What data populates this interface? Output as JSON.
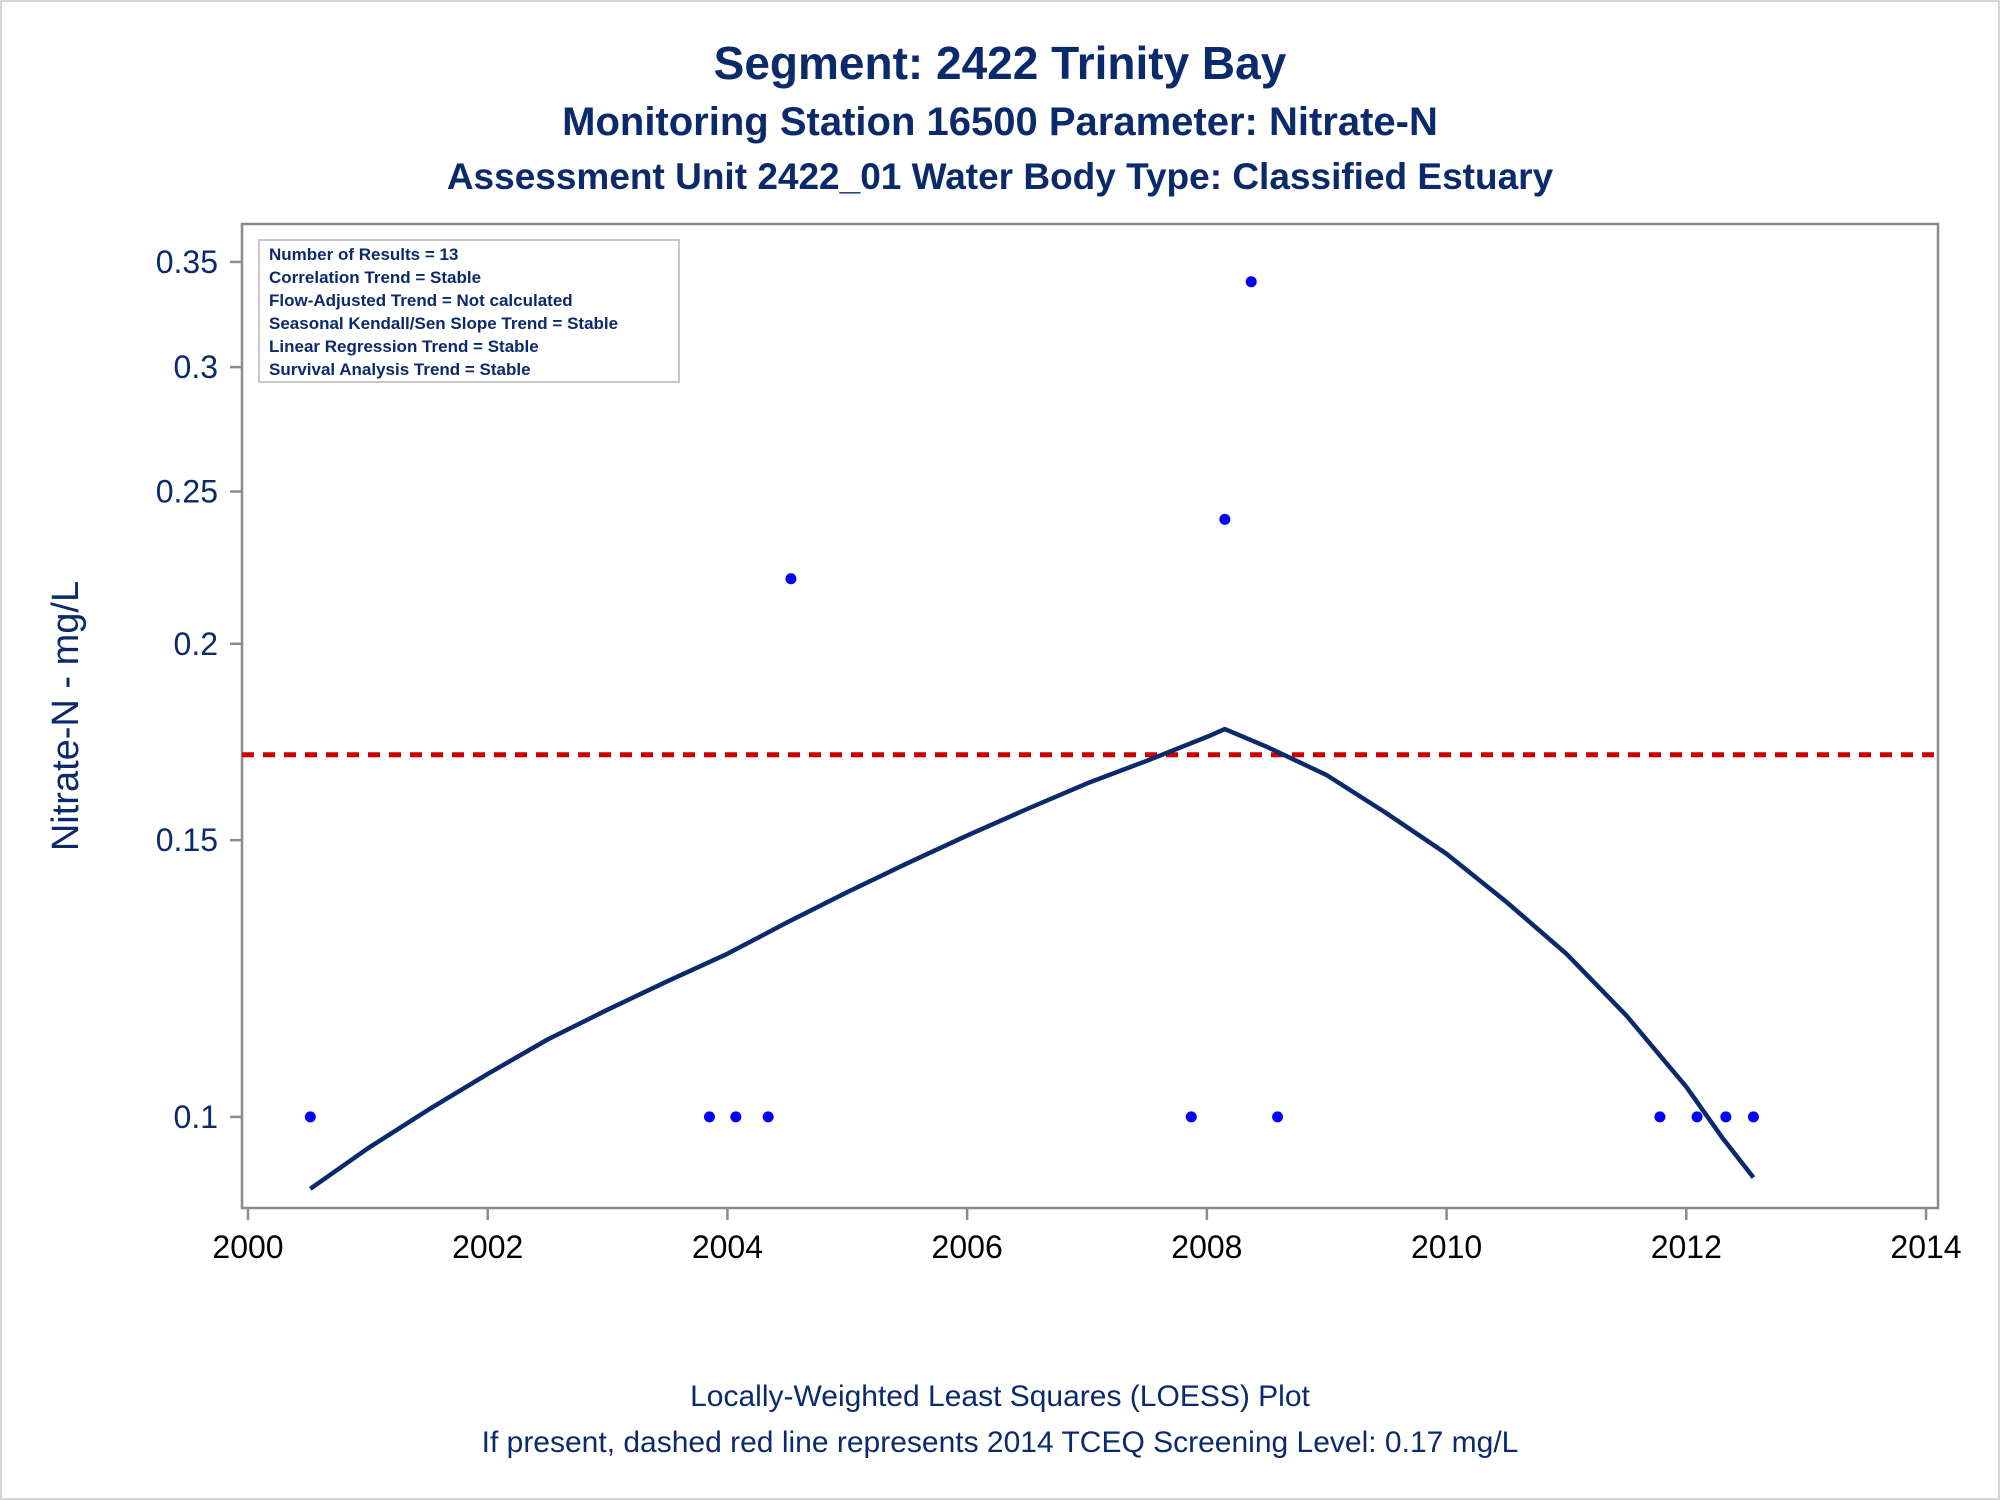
{
  "titles": {
    "line1": "Segment: 2422  Trinity Bay",
    "line2": "Monitoring Station 16500 Parameter: Nitrate-N",
    "line3": "Assessment Unit 2422_01   Water Body Type: Classified Estuary"
  },
  "footnotes": {
    "line1": "Locally-Weighted Least Squares (LOESS) Plot",
    "line2": "If present, dashed red line represents 2014 TCEQ Screening Level: 0.17 mg/L"
  },
  "stats_box": [
    "Number of Results = 13",
    "Correlation Trend = Stable",
    "Flow-Adjusted Trend = Not calculated",
    "Seasonal Kendall/Sen Slope Trend = Stable",
    "Linear Regression Trend = Stable",
    "Survival Analysis Trend = Stable"
  ],
  "colors": {
    "text": "#0b2a6b",
    "points": "#0000ff",
    "loess": "#0b2a6b",
    "screening": "#cc0000",
    "axis": "#8c8c8c"
  },
  "chart_data": {
    "type": "scatter",
    "ylabel": "Nitrate-N - mg/L",
    "xlabel": "",
    "y_scale": "log",
    "xlim": [
      1999.95,
      2014.1
    ],
    "ylim": [
      0.0875,
      0.37
    ],
    "x_ticks": [
      2000,
      2002,
      2004,
      2006,
      2008,
      2010,
      2012,
      2014
    ],
    "y_ticks": [
      0.1,
      0.15,
      0.2,
      0.25,
      0.3,
      0.35
    ],
    "x_tick_labels": [
      "2000",
      "2002",
      "2004",
      "2006",
      "2008",
      "2010",
      "2012",
      "2014"
    ],
    "y_tick_labels": [
      "0.1",
      "0.15",
      "0.2",
      "0.25",
      "0.3",
      "0.35"
    ],
    "points": {
      "x": [
        2000.52,
        2003.85,
        2004.07,
        2004.34,
        2004.53,
        2007.87,
        2008.15,
        2008.37,
        2008.59,
        2011.78,
        2012.09,
        2012.33,
        2012.56
      ],
      "y": [
        0.1,
        0.1,
        0.1,
        0.1,
        0.22,
        0.1,
        0.24,
        0.34,
        0.1,
        0.1,
        0.1,
        0.1,
        0.1
      ]
    },
    "loess": {
      "x": [
        2000.52,
        2001.0,
        2001.5,
        2002.0,
        2002.5,
        2003.0,
        2003.5,
        2004.0,
        2004.5,
        2005.0,
        2005.5,
        2006.0,
        2006.5,
        2007.0,
        2007.5,
        2008.0,
        2008.15,
        2008.5,
        2009.0,
        2009.5,
        2010.0,
        2010.5,
        2011.0,
        2011.5,
        2012.0,
        2012.3,
        2012.56
      ],
      "y": [
        0.09,
        0.0955,
        0.101,
        0.1065,
        0.112,
        0.117,
        0.122,
        0.127,
        0.133,
        0.139,
        0.145,
        0.151,
        0.157,
        0.163,
        0.1685,
        0.1745,
        0.1765,
        0.172,
        0.165,
        0.156,
        0.147,
        0.137,
        0.127,
        0.116,
        0.1045,
        0.097,
        0.0915
      ]
    },
    "screening_level": 0.17
  }
}
